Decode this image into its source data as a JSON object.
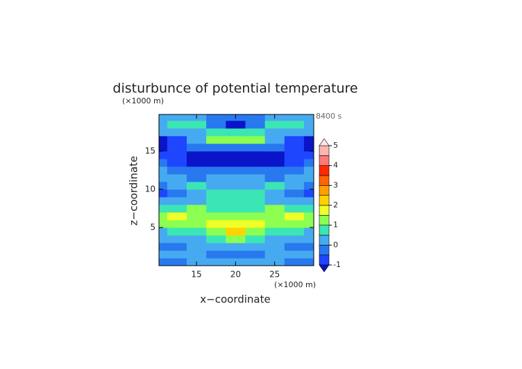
{
  "chart_data": {
    "type": "contour",
    "title": "disturbunce of potential temperature",
    "time_label": "8400 s",
    "xlabel": "x−coordinate",
    "ylabel": "z−coordinate",
    "x_unit": "(×1000 m)",
    "y_unit": "(×1000 m)",
    "xlim": [
      10.2,
      30
    ],
    "ylim": [
      0,
      19.8
    ],
    "xticks": [
      15,
      20,
      25
    ],
    "yticks": [
      5,
      10,
      15
    ],
    "x": [
      10,
      12.5,
      15,
      17.5,
      20,
      22.5,
      25,
      27.5,
      30
    ],
    "z": [
      0.5,
      1.5,
      2.5,
      3.5,
      4.5,
      5.5,
      6.5,
      7.5,
      8.5,
      9.5,
      10.5,
      11.5,
      12.5,
      13.5,
      14.5,
      15.5,
      16.5,
      17.5,
      18.5,
      19.5
    ],
    "values": [
      [
        -0.3,
        -0.2,
        0.2,
        0.3,
        0.2,
        0.3,
        0.2,
        -0.2,
        -0.3
      ],
      [
        0.2,
        0.1,
        0.1,
        -0.3,
        -0.2,
        -0.3,
        0.1,
        0.1,
        0.2
      ],
      [
        -0.3,
        -0.2,
        0.2,
        0.1,
        0.4,
        0.1,
        0.2,
        -0.2,
        -0.3
      ],
      [
        0.1,
        0.2,
        0.3,
        0.6,
        1.2,
        0.6,
        0.3,
        0.2,
        0.1
      ],
      [
        0.4,
        0.6,
        0.8,
        1.0,
        2.2,
        1.0,
        0.8,
        0.6,
        0.4
      ],
      [
        1.0,
        1.2,
        1.4,
        1.6,
        1.8,
        1.6,
        1.4,
        1.2,
        1.0
      ],
      [
        1.2,
        1.6,
        1.3,
        1.2,
        1.1,
        1.2,
        1.3,
        1.6,
        1.2
      ],
      [
        0.6,
        0.8,
        1.2,
        0.8,
        0.7,
        0.8,
        1.2,
        0.8,
        0.6
      ],
      [
        0.2,
        0.2,
        0.4,
        0.7,
        0.8,
        0.7,
        0.4,
        0.2,
        0.2
      ],
      [
        -0.6,
        -0.3,
        0.2,
        0.6,
        0.7,
        0.6,
        0.2,
        -0.3,
        -0.6
      ],
      [
        -0.3,
        0.2,
        0.6,
        0.3,
        0.2,
        0.3,
        0.6,
        0.2,
        -0.3
      ],
      [
        0.3,
        0.1,
        -0.2,
        0.2,
        0.3,
        0.2,
        -0.2,
        0.1,
        0.3
      ],
      [
        0.2,
        -0.3,
        -0.4,
        -0.3,
        -0.2,
        -0.3,
        -0.4,
        -0.3,
        0.2
      ],
      [
        -0.3,
        -0.6,
        -1.1,
        -1.2,
        -1.2,
        -1.2,
        -1.1,
        -0.6,
        -0.3
      ],
      [
        -0.7,
        -0.9,
        -1.2,
        -1.3,
        -1.3,
        -1.3,
        -1.2,
        -0.9,
        -0.7
      ],
      [
        -1.2,
        -0.8,
        -0.4,
        -0.3,
        -0.2,
        -0.3,
        -0.4,
        -0.8,
        -1.2
      ],
      [
        -1.1,
        -0.6,
        0.2,
        1.2,
        1.3,
        1.2,
        0.2,
        -0.6,
        -1.1
      ],
      [
        0.1,
        0.2,
        0.3,
        0.7,
        0.8,
        0.7,
        0.3,
        0.2,
        0.1
      ],
      [
        0.3,
        0.7,
        0.6,
        -0.3,
        -1.2,
        -0.3,
        0.6,
        0.7,
        0.3
      ],
      [
        0.2,
        0.2,
        0.1,
        -0.2,
        -0.3,
        -0.2,
        0.1,
        0.2,
        0.2
      ]
    ],
    "levels": [
      -1,
      -0.5,
      0,
      0.5,
      1,
      1.5,
      2,
      2.5,
      3,
      3.5,
      4,
      4.5,
      5
    ],
    "colors": [
      "#1e46ff",
      "#2878f0",
      "#46aaf0",
      "#3ce6b4",
      "#8cff50",
      "#f0ff28",
      "#ffd200",
      "#ffa000",
      "#ff6400",
      "#ff2800",
      "#ff7878",
      "#ffb4b4"
    ],
    "under_color": "#0a14c8",
    "over_color": "#ffe6e6",
    "colorbar_ticks": [
      -1,
      0,
      1,
      2,
      3,
      4,
      5
    ]
  }
}
